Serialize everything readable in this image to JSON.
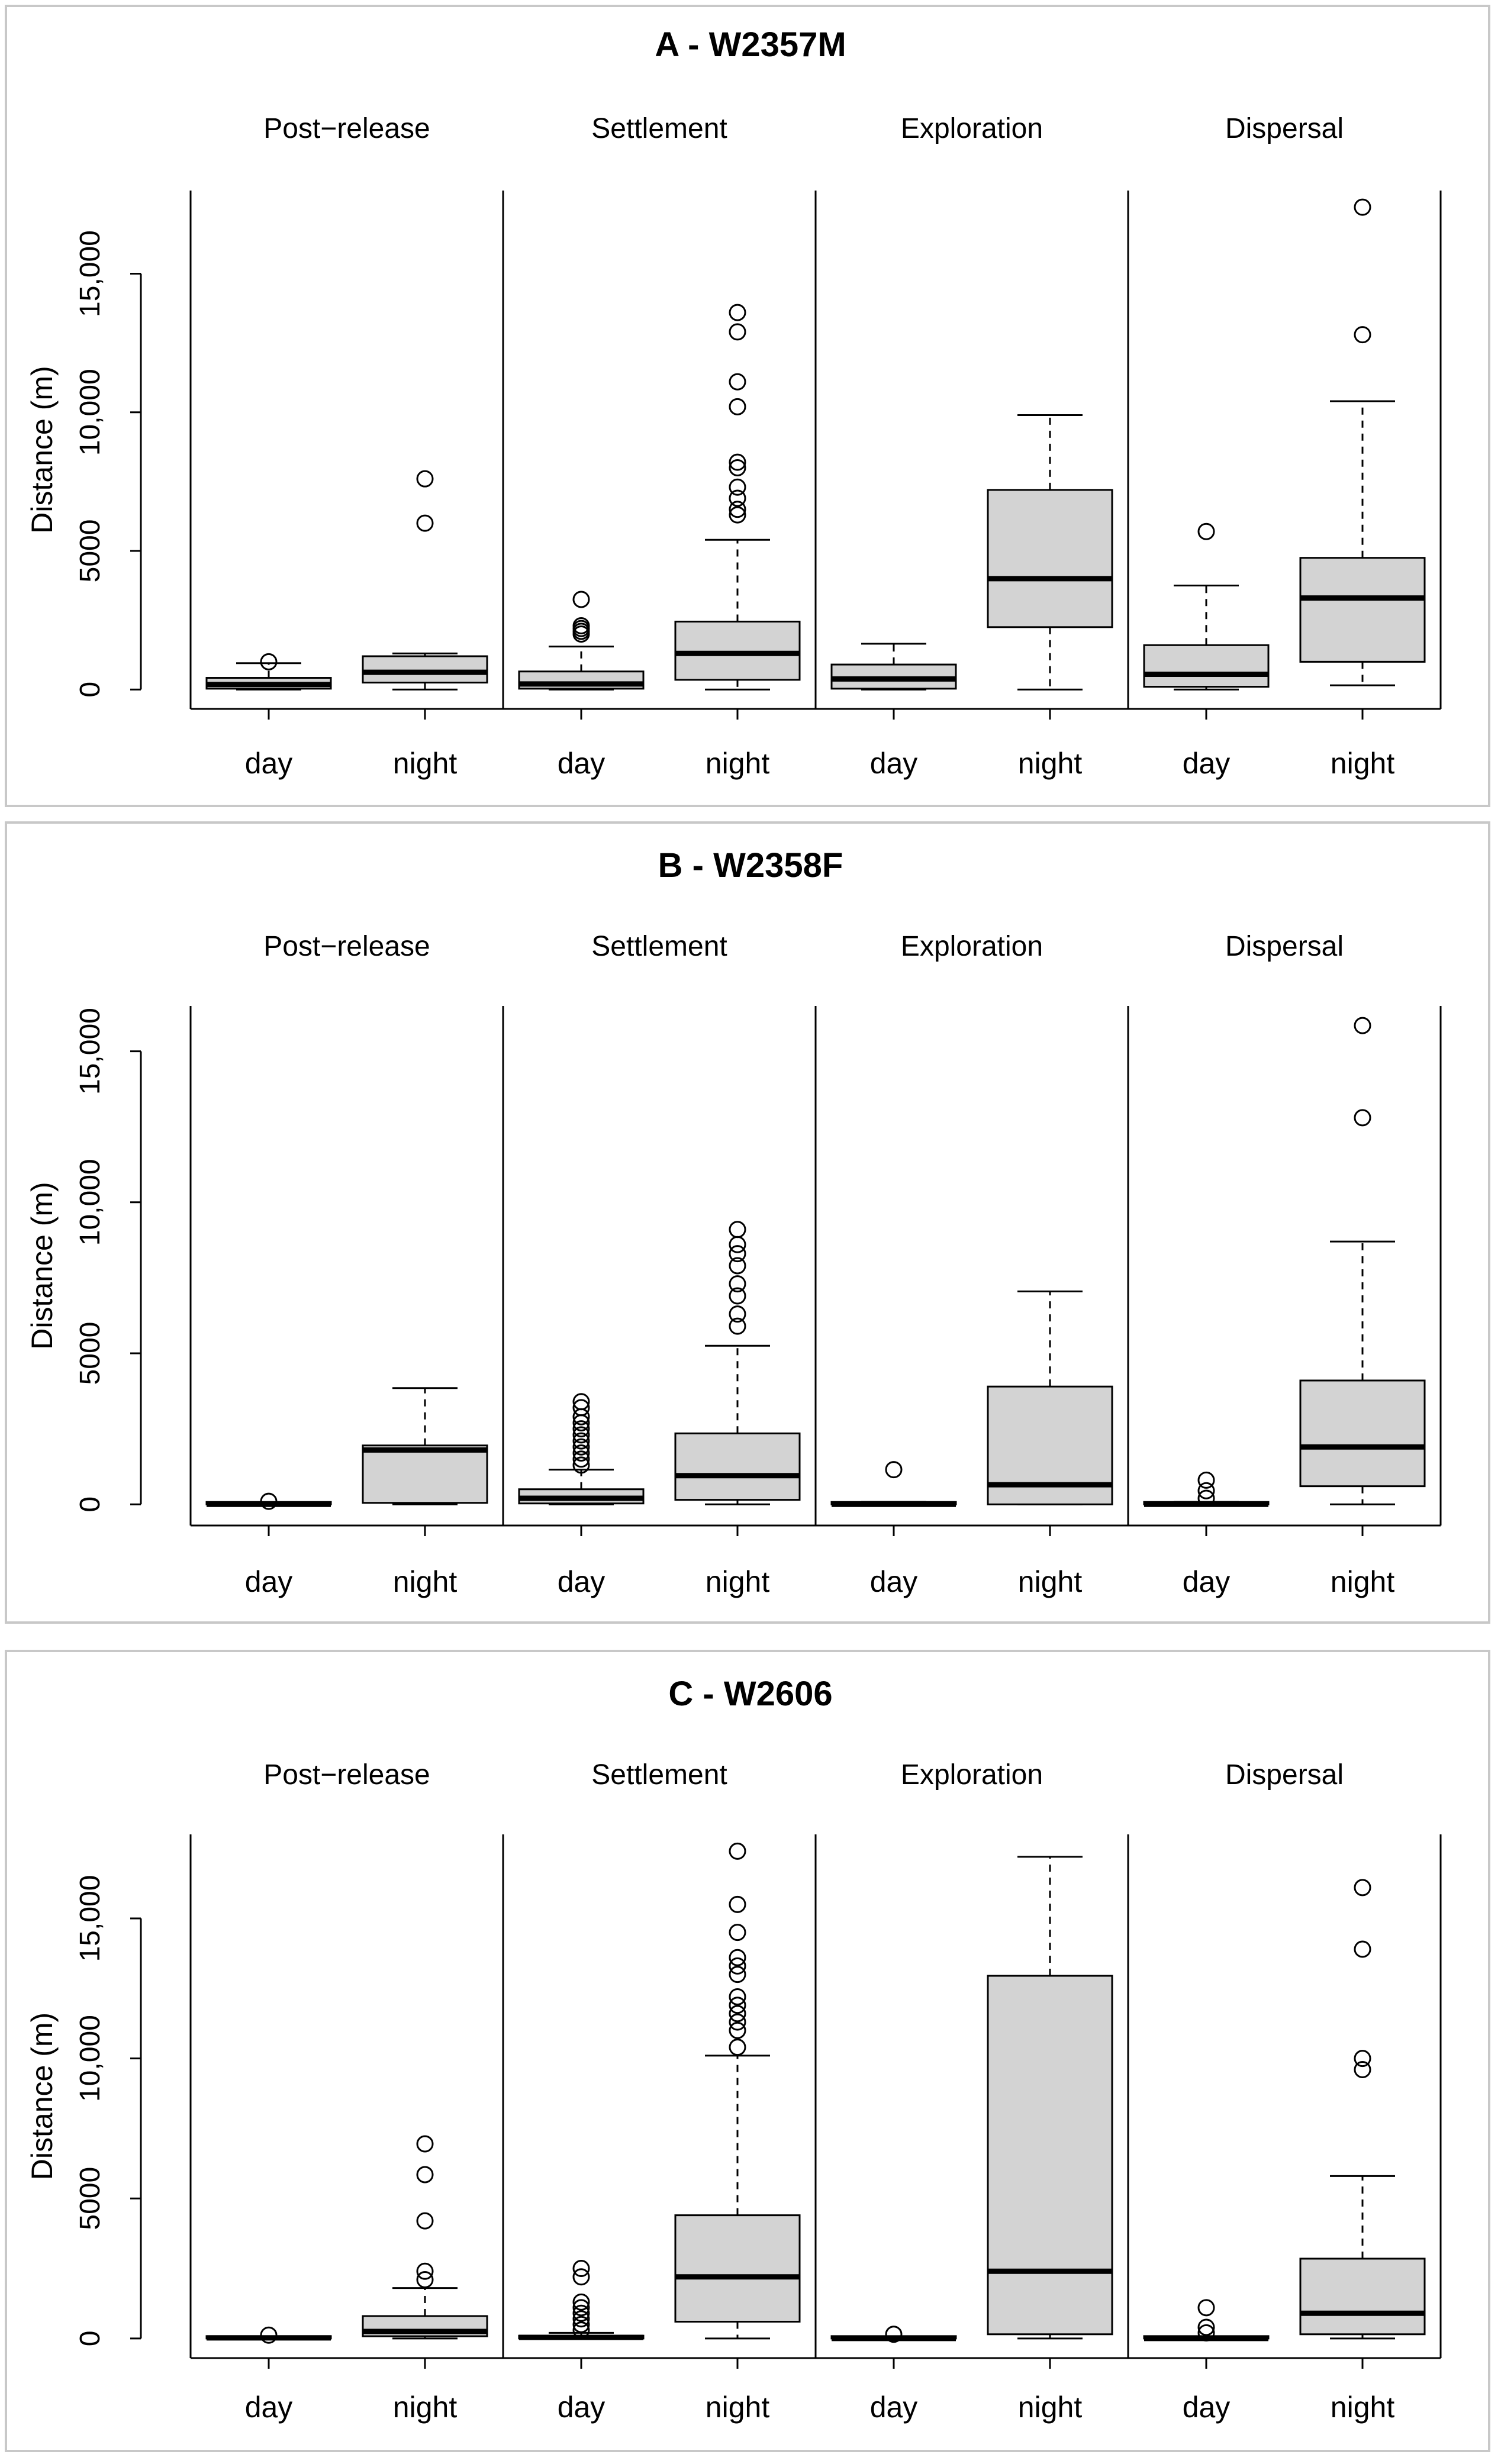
{
  "figure": {
    "background": "#ffffff",
    "frame_color": "#c8c8c8",
    "box_fill": "#d3d3d3",
    "line_color": "#000000"
  },
  "chart_data": [
    {
      "type": "boxplot",
      "title": "A - W2357M",
      "ylabel": "Distance (m)",
      "ylim": [
        -700,
        18000
      ],
      "yticks": [
        0,
        5000,
        10000,
        15000
      ],
      "ytick_labels": [
        "0",
        "5000",
        "10,000",
        "15,000"
      ],
      "panels": [
        {
          "label": "Post−release",
          "groups": [
            {
              "label": "day",
              "q1": 30,
              "median": 180,
              "q3": 420,
              "whisker_low": 0,
              "whisker_high": 950,
              "outliers": [
                1000
              ]
            },
            {
              "label": "night",
              "q1": 250,
              "median": 620,
              "q3": 1200,
              "whisker_low": 0,
              "whisker_high": 1300,
              "outliers": [
                6000,
                7600
              ]
            }
          ]
        },
        {
          "label": "Settlement",
          "groups": [
            {
              "label": "day",
              "q1": 30,
              "median": 200,
              "q3": 650,
              "whisker_low": 0,
              "whisker_high": 1550,
              "outliers": [
                2000,
                2100,
                2200,
                2300,
                3250
              ]
            },
            {
              "label": "night",
              "q1": 350,
              "median": 1300,
              "q3": 2450,
              "whisker_low": 0,
              "whisker_high": 5400,
              "outliers": [
                6300,
                6500,
                6900,
                7300,
                8000,
                8200,
                10200,
                11100,
                12900,
                13600
              ]
            }
          ]
        },
        {
          "label": "Exploration",
          "groups": [
            {
              "label": "day",
              "q1": 30,
              "median": 380,
              "q3": 900,
              "whisker_low": 0,
              "whisker_high": 1650,
              "outliers": []
            },
            {
              "label": "night",
              "q1": 2250,
              "median": 4000,
              "q3": 7200,
              "whisker_low": 0,
              "whisker_high": 9900,
              "outliers": []
            }
          ]
        },
        {
          "label": "Dispersal",
          "groups": [
            {
              "label": "day",
              "q1": 100,
              "median": 550,
              "q3": 1600,
              "whisker_low": 0,
              "whisker_high": 3750,
              "outliers": [
                5700
              ]
            },
            {
              "label": "night",
              "q1": 1000,
              "median": 3300,
              "q3": 4750,
              "whisker_low": 150,
              "whisker_high": 10400,
              "outliers": [
                12800,
                17400
              ]
            }
          ]
        }
      ],
      "xtick_labels": [
        "day",
        "night",
        "day",
        "night",
        "day",
        "night",
        "day",
        "night"
      ]
    },
    {
      "type": "boxplot",
      "title": "B - W2358F",
      "ylabel": "Distance (m)",
      "ylim": [
        -700,
        16500
      ],
      "yticks": [
        0,
        5000,
        10000,
        15000
      ],
      "ytick_labels": [
        "0",
        "5000",
        "10,000",
        "15,000"
      ],
      "panels": [
        {
          "label": "Post−release",
          "groups": [
            {
              "label": "day",
              "q1": 0,
              "median": 0,
              "q3": 30,
              "whisker_low": 0,
              "whisker_high": 50,
              "outliers": [
                100
              ]
            },
            {
              "label": "night",
              "q1": 50,
              "median": 1800,
              "q3": 1950,
              "whisker_low": 0,
              "whisker_high": 3850,
              "outliers": []
            }
          ]
        },
        {
          "label": "Settlement",
          "groups": [
            {
              "label": "day",
              "q1": 30,
              "median": 200,
              "q3": 500,
              "whisker_low": 0,
              "whisker_high": 1150,
              "outliers": [
                1300,
                1500,
                1700,
                1900,
                2100,
                2300,
                2500,
                2700,
                2900,
                3200,
                3400
              ]
            },
            {
              "label": "night",
              "q1": 150,
              "median": 950,
              "q3": 2350,
              "whisker_low": 0,
              "whisker_high": 5250,
              "outliers": [
                5900,
                6300,
                6900,
                7300,
                7900,
                8300,
                8600,
                9100
              ]
            }
          ]
        },
        {
          "label": "Exploration",
          "groups": [
            {
              "label": "day",
              "q1": 0,
              "median": 0,
              "q3": 40,
              "whisker_low": 0,
              "whisker_high": 80,
              "outliers": [
                1150
              ]
            },
            {
              "label": "night",
              "q1": 0,
              "median": 650,
              "q3": 3900,
              "whisker_low": 0,
              "whisker_high": 7050,
              "outliers": []
            }
          ]
        },
        {
          "label": "Dispersal",
          "groups": [
            {
              "label": "day",
              "q1": 0,
              "median": 0,
              "q3": 40,
              "whisker_low": 0,
              "whisker_high": 80,
              "outliers": [
                200,
                450,
                800
              ]
            },
            {
              "label": "night",
              "q1": 600,
              "median": 1900,
              "q3": 4100,
              "whisker_low": 0,
              "whisker_high": 8700,
              "outliers": [
                12800,
                15850
              ]
            }
          ]
        }
      ],
      "xtick_labels": [
        "day",
        "night",
        "day",
        "night",
        "day",
        "night",
        "day",
        "night"
      ]
    },
    {
      "type": "boxplot",
      "title": "C - W2606",
      "ylabel": "Distance (m)",
      "ylim": [
        -700,
        18000
      ],
      "yticks": [
        0,
        5000,
        10000,
        15000
      ],
      "ytick_labels": [
        "0",
        "5000",
        "10,000",
        "15,000"
      ],
      "panels": [
        {
          "label": "Post−release",
          "groups": [
            {
              "label": "day",
              "q1": 0,
              "median": 20,
              "q3": 60,
              "whisker_low": 0,
              "whisker_high": 80,
              "outliers": [
                120
              ]
            },
            {
              "label": "night",
              "q1": 80,
              "median": 250,
              "q3": 800,
              "whisker_low": 0,
              "whisker_high": 1800,
              "outliers": [
                2100,
                2400,
                4200,
                5850,
                6950
              ]
            }
          ]
        },
        {
          "label": "Settlement",
          "groups": [
            {
              "label": "day",
              "q1": 0,
              "median": 40,
              "q3": 100,
              "whisker_low": 0,
              "whisker_high": 200,
              "outliers": [
                300,
                500,
                700,
                900,
                1100,
                1300,
                2200,
                2500
              ]
            },
            {
              "label": "night",
              "q1": 600,
              "median": 2200,
              "q3": 4400,
              "whisker_low": 0,
              "whisker_high": 10100,
              "outliers": [
                10400,
                11000,
                11300,
                11600,
                11900,
                12200,
                13000,
                13300,
                13600,
                14500,
                15500,
                17400
              ]
            }
          ]
        },
        {
          "label": "Exploration",
          "groups": [
            {
              "label": "day",
              "q1": 0,
              "median": 0,
              "q3": 40,
              "whisker_low": 0,
              "whisker_high": 80,
              "outliers": [
                150
              ]
            },
            {
              "label": "night",
              "q1": 150,
              "median": 2400,
              "q3": 12950,
              "whisker_low": 0,
              "whisker_high": 17200,
              "outliers": []
            }
          ]
        },
        {
          "label": "Dispersal",
          "groups": [
            {
              "label": "day",
              "q1": 0,
              "median": 0,
              "q3": 40,
              "whisker_low": 0,
              "whisker_high": 80,
              "outliers": [
                200,
                400,
                1100
              ]
            },
            {
              "label": "night",
              "q1": 150,
              "median": 900,
              "q3": 2850,
              "whisker_low": 0,
              "whisker_high": 5800,
              "outliers": [
                9600,
                10000,
                13900,
                16100
              ]
            }
          ]
        }
      ],
      "xtick_labels": [
        "day",
        "night",
        "day",
        "night",
        "day",
        "night",
        "day",
        "night"
      ]
    }
  ]
}
